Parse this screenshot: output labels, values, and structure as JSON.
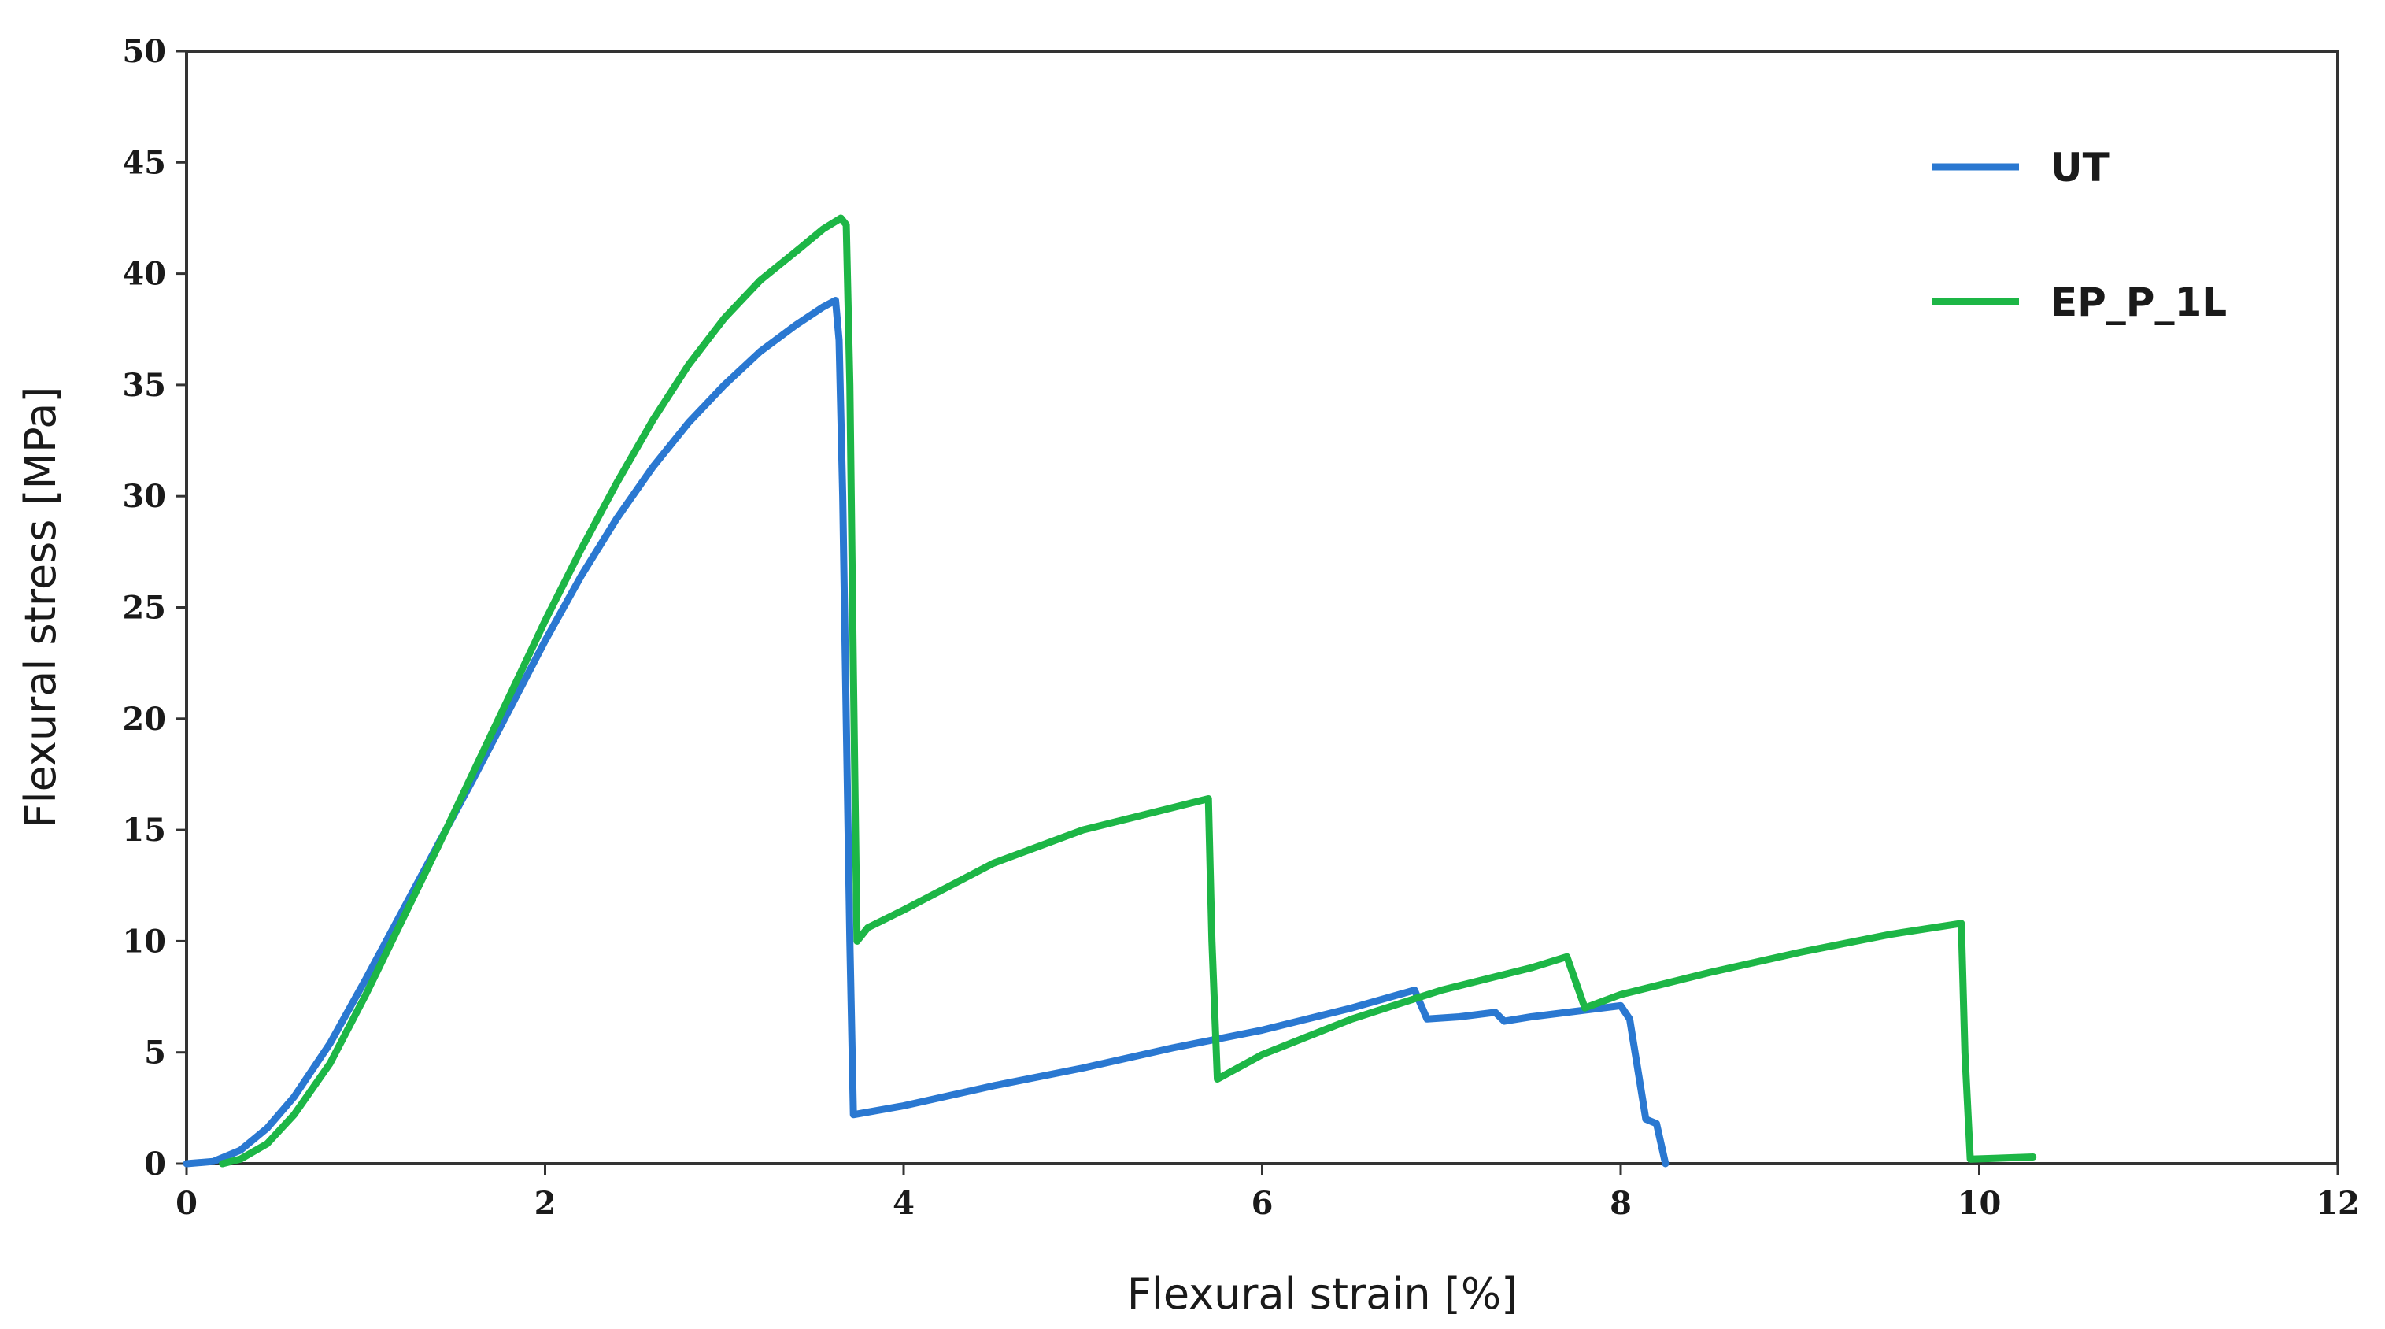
{
  "chart_data": {
    "type": "line",
    "title": "",
    "xlabel": "Flexural strain [%]",
    "ylabel": "Flexural stress [MPa]",
    "xlim": [
      0,
      12
    ],
    "ylim": [
      0,
      50
    ],
    "xticks": [
      0,
      2,
      4,
      6,
      8,
      10,
      12
    ],
    "yticks": [
      0,
      5,
      10,
      15,
      20,
      25,
      30,
      35,
      40,
      45,
      50
    ],
    "grid": false,
    "legend_position": "top-right",
    "series": [
      {
        "name": "UT",
        "color": "#2a78d1",
        "points": [
          [
            0,
            0
          ],
          [
            0.15,
            0.1
          ],
          [
            0.3,
            0.6
          ],
          [
            0.45,
            1.6
          ],
          [
            0.6,
            3.0
          ],
          [
            0.8,
            5.4
          ],
          [
            1.0,
            8.3
          ],
          [
            1.2,
            11.3
          ],
          [
            1.4,
            14.3
          ],
          [
            1.6,
            17.3
          ],
          [
            1.8,
            20.4
          ],
          [
            2.0,
            23.5
          ],
          [
            2.2,
            26.4
          ],
          [
            2.4,
            29.0
          ],
          [
            2.6,
            31.3
          ],
          [
            2.8,
            33.3
          ],
          [
            3.0,
            35.0
          ],
          [
            3.2,
            36.5
          ],
          [
            3.4,
            37.7
          ],
          [
            3.55,
            38.5
          ],
          [
            3.62,
            38.8
          ],
          [
            3.64,
            37.0
          ],
          [
            3.66,
            30.0
          ],
          [
            3.68,
            20.0
          ],
          [
            3.7,
            10.0
          ],
          [
            3.72,
            2.2
          ],
          [
            4.0,
            2.6
          ],
          [
            4.5,
            3.5
          ],
          [
            5.0,
            4.3
          ],
          [
            5.5,
            5.2
          ],
          [
            6.0,
            6.0
          ],
          [
            6.5,
            7.0
          ],
          [
            6.85,
            7.8
          ],
          [
            6.92,
            6.5
          ],
          [
            7.1,
            6.6
          ],
          [
            7.3,
            6.8
          ],
          [
            7.35,
            6.4
          ],
          [
            7.5,
            6.6
          ],
          [
            8.0,
            7.1
          ],
          [
            8.05,
            6.5
          ],
          [
            8.1,
            4.0
          ],
          [
            8.14,
            2.0
          ],
          [
            8.2,
            1.8
          ],
          [
            8.25,
            0
          ]
        ]
      },
      {
        "name": "EP_P_1L",
        "color": "#1db646",
        "points": [
          [
            0.2,
            0
          ],
          [
            0.3,
            0.2
          ],
          [
            0.45,
            0.9
          ],
          [
            0.6,
            2.2
          ],
          [
            0.8,
            4.5
          ],
          [
            1.0,
            7.6
          ],
          [
            1.2,
            10.9
          ],
          [
            1.4,
            14.2
          ],
          [
            1.6,
            17.6
          ],
          [
            1.8,
            21.0
          ],
          [
            2.0,
            24.4
          ],
          [
            2.2,
            27.6
          ],
          [
            2.4,
            30.6
          ],
          [
            2.6,
            33.4
          ],
          [
            2.8,
            35.9
          ],
          [
            3.0,
            38.0
          ],
          [
            3.2,
            39.7
          ],
          [
            3.4,
            41.0
          ],
          [
            3.55,
            42.0
          ],
          [
            3.65,
            42.5
          ],
          [
            3.68,
            42.2
          ],
          [
            3.7,
            35.0
          ],
          [
            3.72,
            22.0
          ],
          [
            3.74,
            10.0
          ],
          [
            3.8,
            10.6
          ],
          [
            4.0,
            11.4
          ],
          [
            4.5,
            13.5
          ],
          [
            5.0,
            15.0
          ],
          [
            5.4,
            15.8
          ],
          [
            5.7,
            16.4
          ],
          [
            5.72,
            10.0
          ],
          [
            5.75,
            3.8
          ],
          [
            6.0,
            4.9
          ],
          [
            6.5,
            6.5
          ],
          [
            7.0,
            7.8
          ],
          [
            7.5,
            8.8
          ],
          [
            7.7,
            9.3
          ],
          [
            7.8,
            7.0
          ],
          [
            8.0,
            7.6
          ],
          [
            8.5,
            8.6
          ],
          [
            9.0,
            9.5
          ],
          [
            9.5,
            10.3
          ],
          [
            9.9,
            10.8
          ],
          [
            9.92,
            5.0
          ],
          [
            9.95,
            0.2
          ],
          [
            10.3,
            0.3
          ]
        ]
      }
    ]
  }
}
